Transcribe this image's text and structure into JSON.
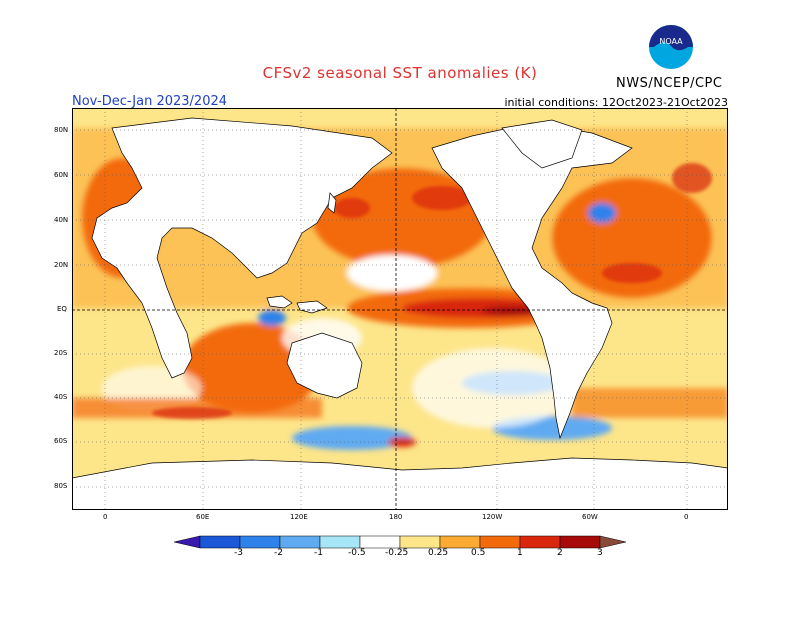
{
  "title": "CFSv2 seasonal SST anomalies (K)",
  "season": "Nov-Dec-Jan 2023/2024",
  "initial_conditions": "initial conditions: 12Oct2023-21Oct2023",
  "agency": "NWS/NCEP/CPC",
  "logo_text": "NOAA",
  "lat_labels": [
    "80N",
    "60N",
    "40N",
    "20N",
    "EQ",
    "20S",
    "40S",
    "60S",
    "80S"
  ],
  "lon_labels": [
    "0",
    "60E",
    "120E",
    "180",
    "120W",
    "60W",
    "0"
  ],
  "colorbar": {
    "labels": [
      "-3",
      "-2",
      "-1",
      "-0.5",
      "-0.25",
      "0.25",
      "0.5",
      "1",
      "2",
      "3"
    ],
    "colors": [
      "#3a1bb0",
      "#1a58d8",
      "#2e82ea",
      "#60aaf2",
      "#a6e6f6",
      "#ffffff",
      "#fde58a",
      "#fbaa33",
      "#f36a0a",
      "#d8270d",
      "#a60a09",
      "#8a4a3a"
    ]
  }
}
